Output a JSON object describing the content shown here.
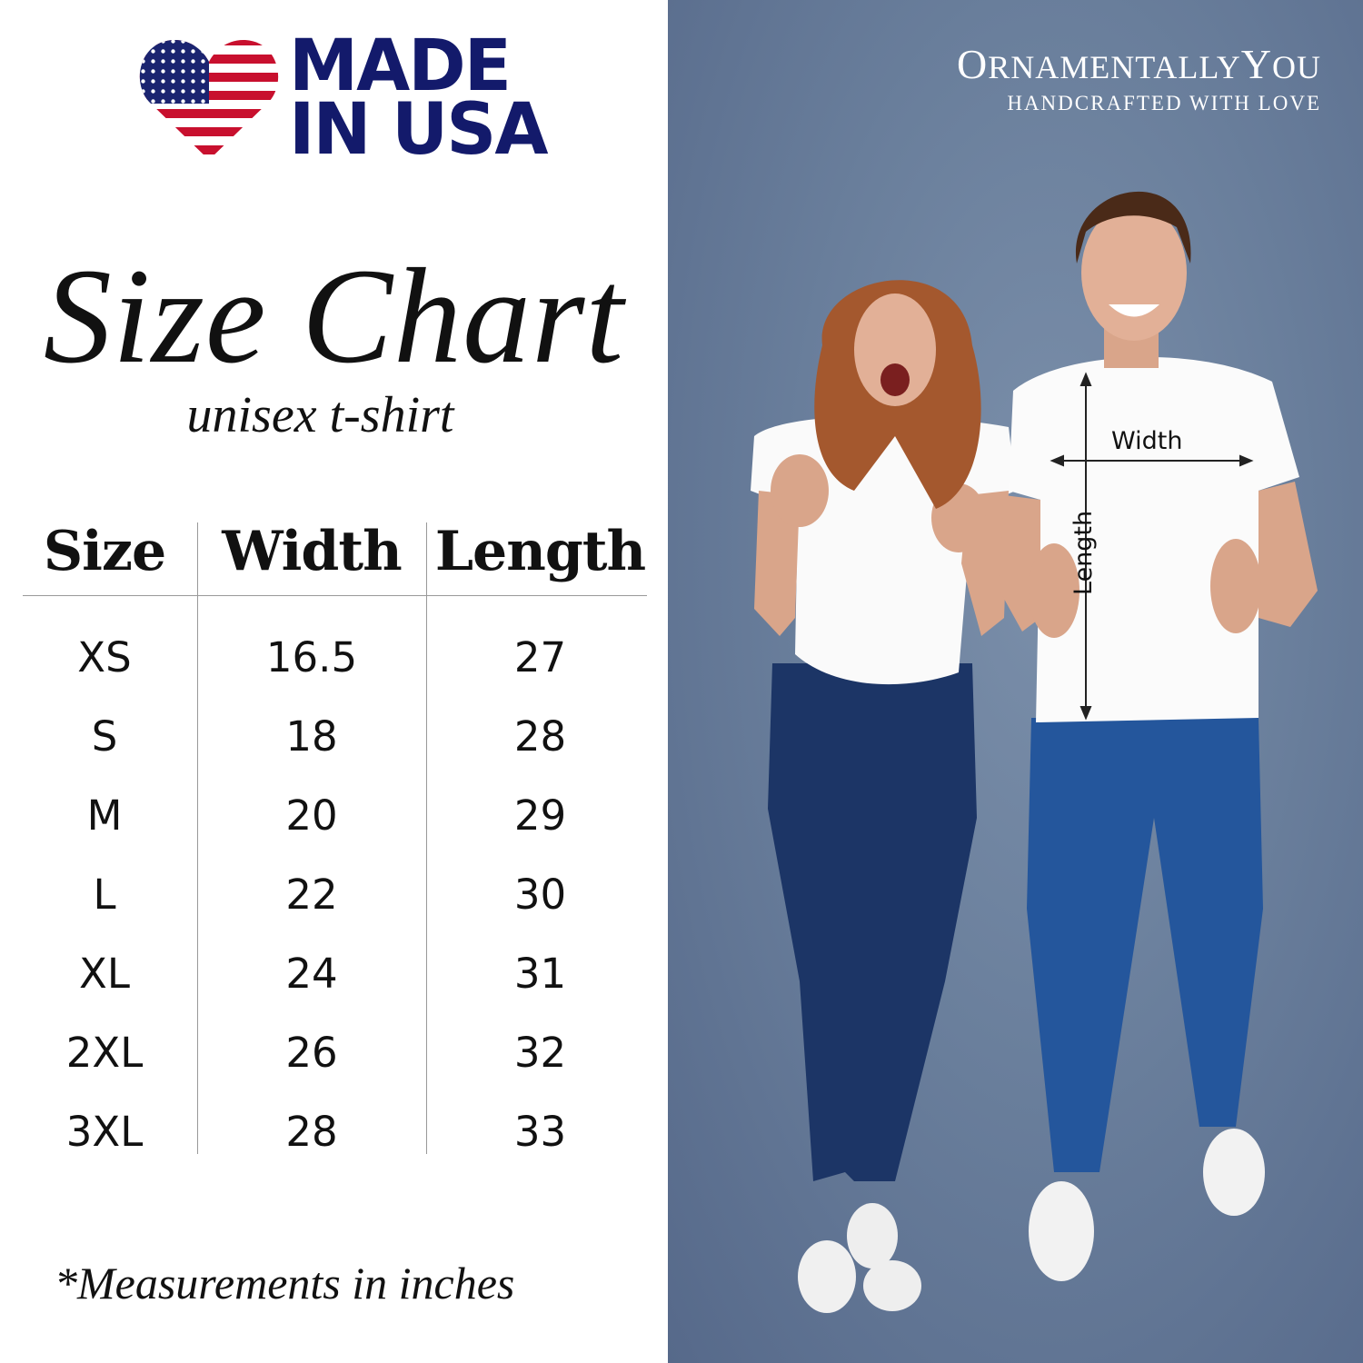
{
  "logo": {
    "line1": "MADE",
    "line2": "IN USA",
    "icon": "usa-flag-heart-icon",
    "colors": {
      "navy": "#131a6b",
      "red": "#c8102e"
    }
  },
  "title": "Size Chart",
  "subtitle": "unisex t-shirt",
  "table": {
    "headers": [
      "Size",
      "Width",
      "Length"
    ],
    "rows": [
      [
        "XS",
        "16.5",
        "27"
      ],
      [
        "S",
        "18",
        "28"
      ],
      [
        "M",
        "20",
        "29"
      ],
      [
        "L",
        "22",
        "30"
      ],
      [
        "XL",
        "24",
        "31"
      ],
      [
        "2XL",
        "26",
        "32"
      ],
      [
        "3XL",
        "28",
        "33"
      ]
    ]
  },
  "footnote": "*Measurements in inches",
  "brand": {
    "name_first_cap": "O",
    "name_rest": "RNAMENTALLY",
    "name_second_cap": "Y",
    "name_end": "OU",
    "tagline": "HANDCRAFTED WITH LOVE"
  },
  "photo": {
    "width_label": "Width",
    "length_label": "Length",
    "background": "#6a7f9c"
  }
}
